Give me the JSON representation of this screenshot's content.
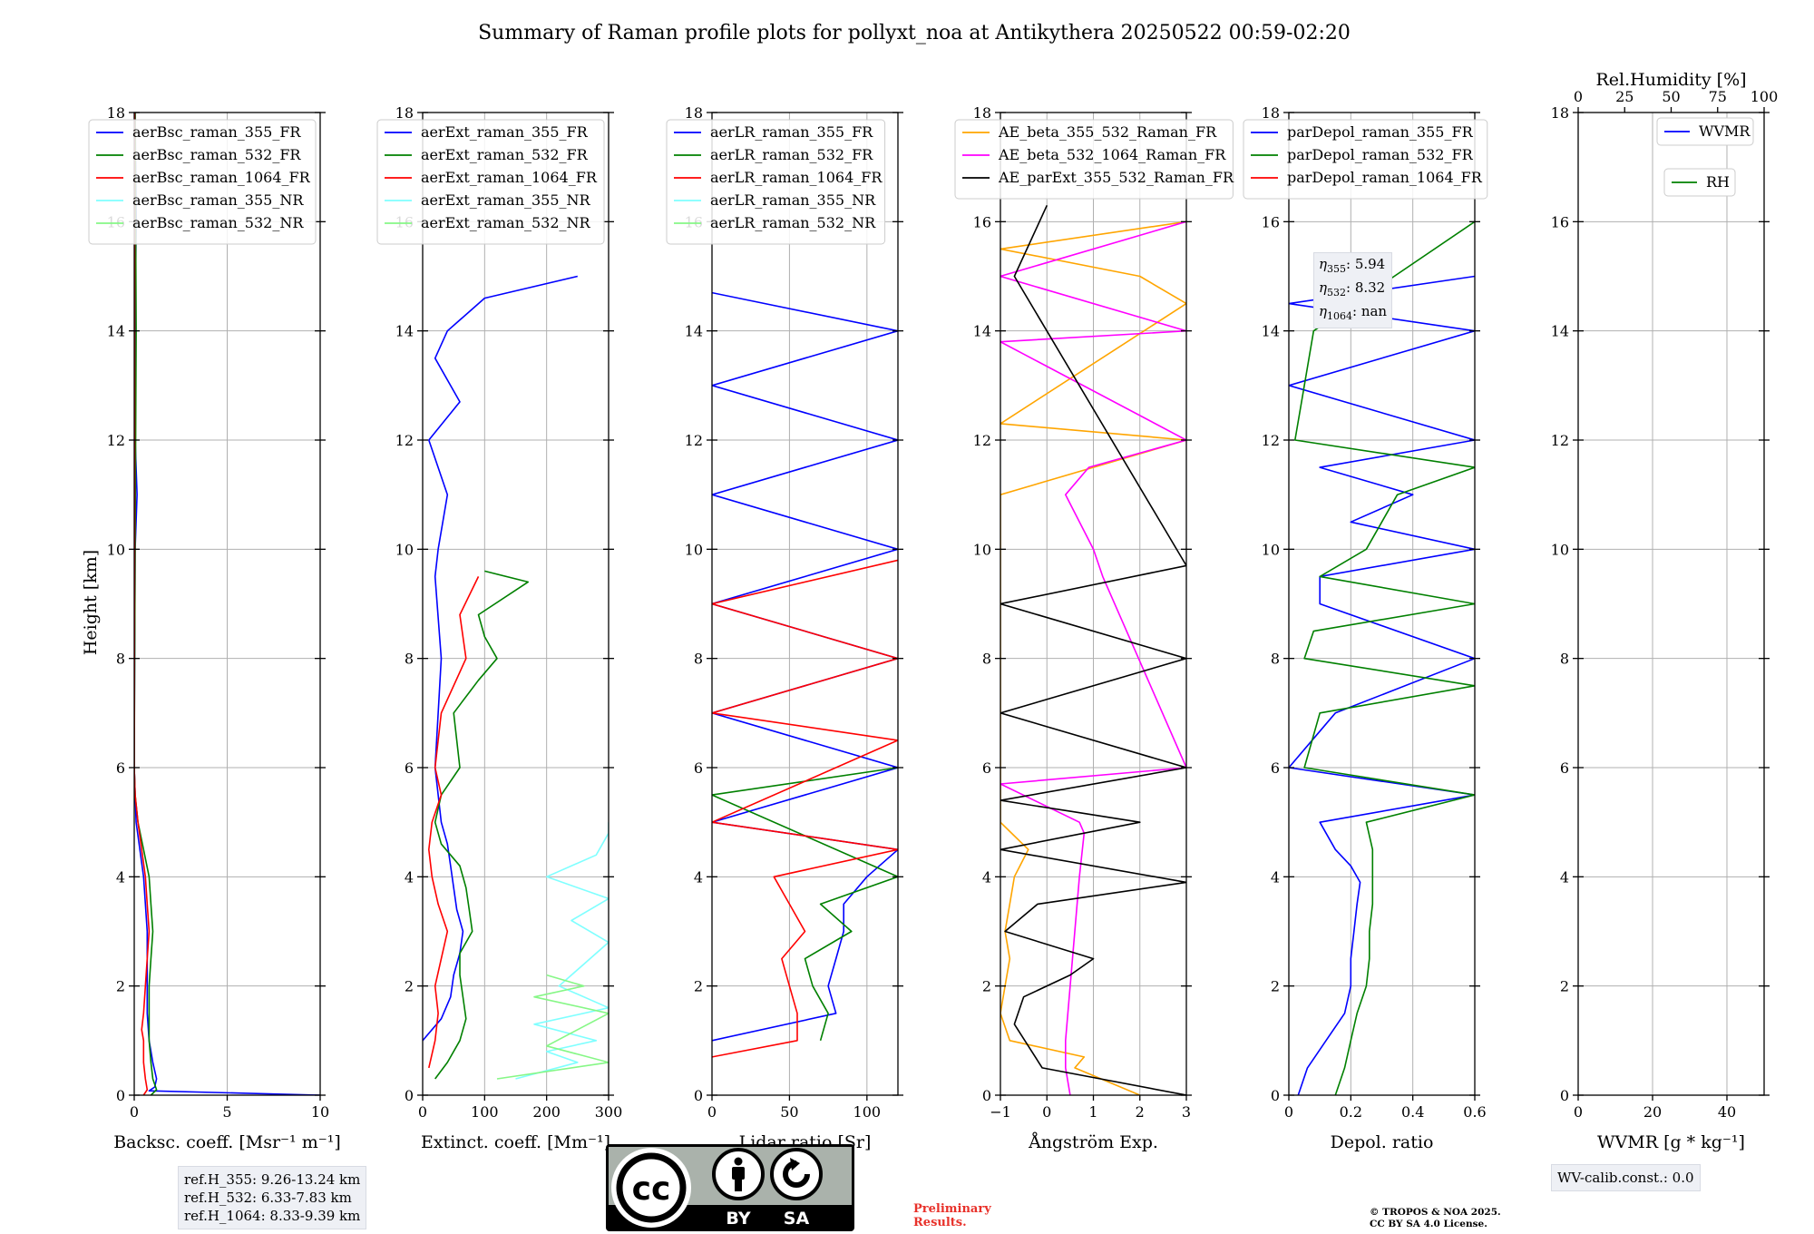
{
  "chart_data": {
    "type": "line",
    "title": "Summary of Raman profile plots for pollyxt_noa at Antikythera 20250522 00:59-02:20",
    "ylabel": "Height [km]",
    "ylim": [
      0,
      18
    ],
    "yticks": [
      0,
      2,
      4,
      6,
      8,
      10,
      12,
      14,
      16,
      18
    ],
    "colors": {
      "blue": "#0000ff",
      "green": "#008000",
      "red": "#ff0000",
      "cyan": "#7fffff",
      "lightgreen": "#86f786",
      "orange": "#ffa500",
      "magenta": "#ff00ff",
      "black": "#000000"
    },
    "panels": [
      {
        "id": "bsc",
        "xlabel": "Backsc. coeff. [Msr⁻¹ m⁻¹]",
        "xlim": [
          0,
          10
        ],
        "xticks": [
          0,
          5,
          10
        ],
        "legend": "top",
        "series": [
          {
            "name": "aerBsc_raman_355_FR",
            "color": "blue",
            "h": [
              0,
              0.08,
              0.15,
              0.3,
              0.6,
              1.0,
              1.5,
              2.0,
              2.5,
              3.0,
              3.5,
              4.0,
              4.5,
              5.0,
              5.5,
              6.0,
              8.0,
              10.0,
              11.0,
              12.0,
              14.0,
              16.0,
              18.0
            ],
            "v": [
              10.0,
              0.8,
              1.1,
              1.2,
              1.0,
              0.8,
              0.7,
              0.7,
              0.7,
              0.7,
              0.6,
              0.5,
              0.3,
              0.1,
              0.05,
              0.0,
              0.02,
              0.05,
              0.15,
              0.05,
              0.05,
              0.1,
              0.05
            ]
          },
          {
            "name": "aerBsc_raman_532_FR",
            "color": "green",
            "h": [
              0,
              0.1,
              0.3,
              0.6,
              1.0,
              1.5,
              2.0,
              2.5,
              3.0,
              3.5,
              4.0,
              4.5,
              5.0,
              5.5,
              6.0,
              10.0,
              14.0,
              18.0
            ],
            "v": [
              0.9,
              1.2,
              1.0,
              0.9,
              0.8,
              0.8,
              0.8,
              0.9,
              1.0,
              0.9,
              0.8,
              0.5,
              0.2,
              0.05,
              0.0,
              0.05,
              0.1,
              0.05
            ]
          },
          {
            "name": "aerBsc_raman_1064_FR",
            "color": "red",
            "h": [
              0,
              0.1,
              0.3,
              0.6,
              1.0,
              1.2,
              1.5,
              2.0,
              2.5,
              3.0,
              3.5,
              4.0,
              4.5,
              5.0,
              5.5,
              6.0,
              10.0,
              18.0
            ],
            "v": [
              0.5,
              0.7,
              0.6,
              0.5,
              0.5,
              0.4,
              0.5,
              0.6,
              0.7,
              0.8,
              0.7,
              0.6,
              0.4,
              0.2,
              0.05,
              0.0,
              0.02,
              0.02
            ]
          },
          {
            "name": "aerBsc_raman_355_NR",
            "color": "cyan",
            "h": [],
            "v": []
          },
          {
            "name": "aerBsc_raman_532_NR",
            "color": "lightgreen",
            "h": [],
            "v": []
          }
        ]
      },
      {
        "id": "ext",
        "xlabel": "Extinct. coeff. [Mm⁻¹]",
        "xlim": [
          0,
          300
        ],
        "xticks": [
          0,
          100,
          200,
          300
        ],
        "legend": "top",
        "series": [
          {
            "name": "aerExt_raman_355_FR",
            "color": "blue",
            "h": [
              1.0,
              1.4,
              1.8,
              2.2,
              2.6,
              3.0,
              3.4,
              3.8,
              4.2,
              4.6,
              5.0,
              6.0,
              8.0,
              9.5,
              10.0,
              11.0,
              12.0,
              12.7,
              13.5,
              14.0,
              14.6,
              15.0
            ],
            "v": [
              0,
              30,
              45,
              50,
              60,
              65,
              55,
              50,
              45,
              40,
              30,
              20,
              30,
              20,
              25,
              40,
              10,
              60,
              20,
              40,
              100,
              250
            ]
          },
          {
            "name": "aerExt_raman_532_FR",
            "color": "green",
            "h": [
              0.3,
              0.6,
              1.0,
              1.4,
              1.8,
              2.2,
              2.6,
              3.0,
              3.4,
              3.8,
              4.2,
              4.6,
              5.0,
              5.5,
              6.0,
              7.0,
              7.6,
              8.0,
              8.4,
              8.8,
              9.4,
              9.6
            ],
            "v": [
              20,
              40,
              60,
              70,
              65,
              60,
              60,
              80,
              75,
              70,
              60,
              30,
              20,
              30,
              60,
              50,
              90,
              120,
              100,
              90,
              170,
              100
            ]
          },
          {
            "name": "aerExt_raman_1064_FR",
            "color": "red",
            "h": [
              0.5,
              1.0,
              1.5,
              2.0,
              2.5,
              3.0,
              3.5,
              4.0,
              4.5,
              5.0,
              5.5,
              6.0,
              7.0,
              8.0,
              8.8,
              9.5
            ],
            "v": [
              10,
              20,
              25,
              20,
              30,
              40,
              25,
              15,
              10,
              15,
              30,
              20,
              30,
              70,
              60,
              90
            ]
          },
          {
            "name": "aerExt_raman_355_NR",
            "color": "cyan",
            "h": [
              0.3,
              0.6,
              0.8,
              1.0,
              1.3,
              1.6,
              2.0,
              2.4,
              2.8,
              3.2,
              3.6,
              4.0,
              4.4,
              4.8,
              5.0
            ],
            "v": [
              150,
              250,
              200,
              280,
              180,
              300,
              220,
              260,
              300,
              240,
              300,
              200,
              280,
              300,
              300
            ]
          },
          {
            "name": "aerExt_raman_532_NR",
            "color": "lightgreen",
            "h": [
              0.3,
              0.6,
              0.9,
              1.2,
              1.5,
              1.8,
              2.0,
              2.2
            ],
            "v": [
              120,
              300,
              200,
              250,
              300,
              180,
              260,
              200
            ]
          }
        ]
      },
      {
        "id": "lr",
        "xlabel": "Lidar ratio [Sr]",
        "xlim": [
          0,
          120
        ],
        "xticks": [
          0,
          50,
          100
        ],
        "legend": "top",
        "series": [
          {
            "name": "aerLR_raman_355_FR",
            "color": "blue",
            "h": [
              1.0,
              1.5,
              2.0,
              2.5,
              3.0,
              3.5,
              4.0,
              4.5,
              5.0,
              6.0,
              7.0,
              8.0,
              9.0,
              10.0,
              11.0,
              12.0,
              13.0,
              14.0,
              14.7
            ],
            "v": [
              0,
              80,
              75,
              80,
              85,
              85,
              100,
              120,
              0,
              120,
              0,
              120,
              0,
              120,
              0,
              120,
              0,
              120,
              0
            ]
          },
          {
            "name": "aerLR_raman_532_FR",
            "color": "green",
            "h": [
              1.0,
              1.5,
              2.0,
              2.5,
              3.0,
              3.5,
              4.0,
              5.5,
              6.0
            ],
            "v": [
              70,
              75,
              65,
              60,
              90,
              70,
              120,
              0,
              120
            ]
          },
          {
            "name": "aerLR_raman_1064_FR",
            "color": "red",
            "h": [
              0.7,
              1.0,
              1.5,
              2.0,
              2.5,
              3.0,
              3.5,
              4.0,
              4.5,
              5.0,
              6.5,
              7.0,
              8.0,
              9.0,
              9.8
            ],
            "v": [
              0,
              55,
              55,
              50,
              45,
              60,
              50,
              40,
              120,
              0,
              120,
              0,
              120,
              0,
              120
            ]
          },
          {
            "name": "aerLR_raman_355_NR",
            "color": "cyan",
            "h": [],
            "v": []
          },
          {
            "name": "aerLR_raman_532_NR",
            "color": "lightgreen",
            "h": [],
            "v": []
          }
        ]
      },
      {
        "id": "ae",
        "xlabel": "Ångström Exp.",
        "xlim": [
          -1,
          3
        ],
        "xticks": [
          -1,
          0,
          1,
          2,
          3
        ],
        "legend": "top",
        "series": [
          {
            "name": "AE_beta_355_532_Raman_FR",
            "color": "orange",
            "h": [
              0,
              0.5,
              0.7,
              1.0,
              1.5,
              2.0,
              2.5,
              3.0,
              3.5,
              4.0,
              4.5,
              5.0,
              11.0,
              12.0,
              12.3,
              14.5,
              15.0,
              15.5,
              16.0
            ],
            "v": [
              2.0,
              0.6,
              0.8,
              -0.8,
              -1.0,
              -0.9,
              -0.8,
              -0.9,
              -0.8,
              -0.7,
              -0.4,
              -1.0,
              -1.0,
              3.0,
              -1.0,
              3.0,
              2.0,
              -1.0,
              3.0
            ]
          },
          {
            "name": "AE_beta_532_1064_Raman_FR",
            "color": "magenta",
            "h": [
              0,
              0.5,
              1.0,
              2.0,
              3.0,
              4.0,
              4.8,
              5.0,
              5.7,
              6.0,
              9.5,
              10.0,
              11.0,
              11.5,
              12.0,
              13.8,
              14.0,
              15.0,
              16.0
            ],
            "v": [
              0.5,
              0.4,
              0.4,
              0.5,
              0.6,
              0.7,
              0.8,
              0.7,
              -1.0,
              3.0,
              1.2,
              1.0,
              0.4,
              0.9,
              3.0,
              -1.0,
              3.0,
              -1.0,
              3.0
            ]
          },
          {
            "name": "AE_parExt_355_532_Raman_FR",
            "color": "black",
            "h": [
              0,
              0.5,
              1.3,
              1.8,
              2.2,
              2.5,
              3.0,
              3.5,
              3.9,
              4.5,
              5.0,
              5.2,
              5.4,
              6.0,
              7.0,
              8.0,
              9.0,
              9.7,
              15.0,
              16.3
            ],
            "v": [
              3.0,
              -0.1,
              -0.7,
              -0.5,
              0.5,
              1.0,
              -0.9,
              -0.2,
              3.0,
              -1.0,
              2.0,
              0.5,
              -1.0,
              3.0,
              -1.0,
              3.0,
              -1.0,
              3.0,
              -0.7,
              0.0
            ]
          }
        ]
      },
      {
        "id": "depol",
        "xlabel": "Depol. ratio",
        "xlim": [
          0,
          0.6
        ],
        "xticks": [
          0.0,
          0.2,
          0.4,
          0.6
        ],
        "legend": "top",
        "series": [
          {
            "name": "parDepol_raman_355_FR",
            "color": "blue",
            "h": [
              0,
              0.5,
              1.0,
              1.5,
              2.0,
              2.5,
              3.0,
              3.5,
              3.9,
              4.2,
              4.5,
              5.0,
              5.5,
              6.0,
              7.0,
              8.0,
              9.0,
              9.5,
              10.0,
              10.5,
              11.0,
              11.5,
              12.0,
              13.0,
              14.0,
              14.5,
              15.0
            ],
            "v": [
              0.03,
              0.06,
              0.12,
              0.18,
              0.2,
              0.2,
              0.21,
              0.22,
              0.23,
              0.2,
              0.15,
              0.1,
              0.6,
              0.0,
              0.15,
              0.6,
              0.1,
              0.1,
              0.6,
              0.2,
              0.4,
              0.1,
              0.6,
              0.0,
              0.6,
              0.0,
              0.6
            ]
          },
          {
            "name": "parDepol_raman_532_FR",
            "color": "green",
            "h": [
              0,
              0.5,
              1.0,
              1.5,
              2.0,
              2.5,
              3.0,
              3.5,
              4.0,
              4.5,
              5.0,
              5.5,
              6.0,
              7.0,
              7.5,
              8.0,
              8.5,
              9.0,
              9.5,
              10.0,
              10.5,
              11.0,
              11.5,
              12.0,
              13.0,
              14.0,
              16.0
            ],
            "v": [
              0.15,
              0.18,
              0.2,
              0.22,
              0.25,
              0.26,
              0.26,
              0.27,
              0.27,
              0.27,
              0.25,
              0.6,
              0.05,
              0.1,
              0.6,
              0.05,
              0.08,
              0.6,
              0.1,
              0.25,
              0.3,
              0.35,
              0.6,
              0.02,
              0.05,
              0.08,
              0.6
            ]
          },
          {
            "name": "parDepol_raman_1064_FR",
            "color": "red",
            "h": [],
            "v": []
          }
        ]
      },
      {
        "id": "wv",
        "xlabel": "WVMR [g * kg⁻¹]",
        "xlim": [
          0,
          50
        ],
        "xticks": [
          0,
          20,
          40
        ],
        "top_xlabel": "Rel.Humidity [%]",
        "top_xlim": [
          0,
          100
        ],
        "top_xticks": [
          0,
          25,
          50,
          75,
          100
        ],
        "legend": "top-right",
        "series": [
          {
            "name": "WVMR",
            "color": "blue",
            "h": [],
            "v": []
          },
          {
            "name": "RH",
            "color": "green",
            "h": [],
            "v": []
          }
        ]
      }
    ]
  },
  "annotations": {
    "eta": [
      {
        "symbol": "η",
        "sub": "355",
        "value": ": 5.94"
      },
      {
        "symbol": "η",
        "sub": "532",
        "value": ": 8.32"
      },
      {
        "symbol": "η",
        "sub": "1064",
        "value": ": nan"
      }
    ],
    "ref_heights": [
      "ref.H_355: 9.26-13.24 km",
      "ref.H_532: 6.33-7.83 km",
      "ref.H_1064: 8.33-9.39 km"
    ],
    "wv_calib": "WV-calib.const.: 0.0",
    "preliminary": [
      "Preliminary",
      "Results."
    ],
    "copyright": [
      "© TROPOS & NOA 2025.",
      "CC BY SA 4.0 License."
    ],
    "license_badge": {
      "cc": "cc",
      "by": "BY",
      "sa": "SA"
    }
  }
}
